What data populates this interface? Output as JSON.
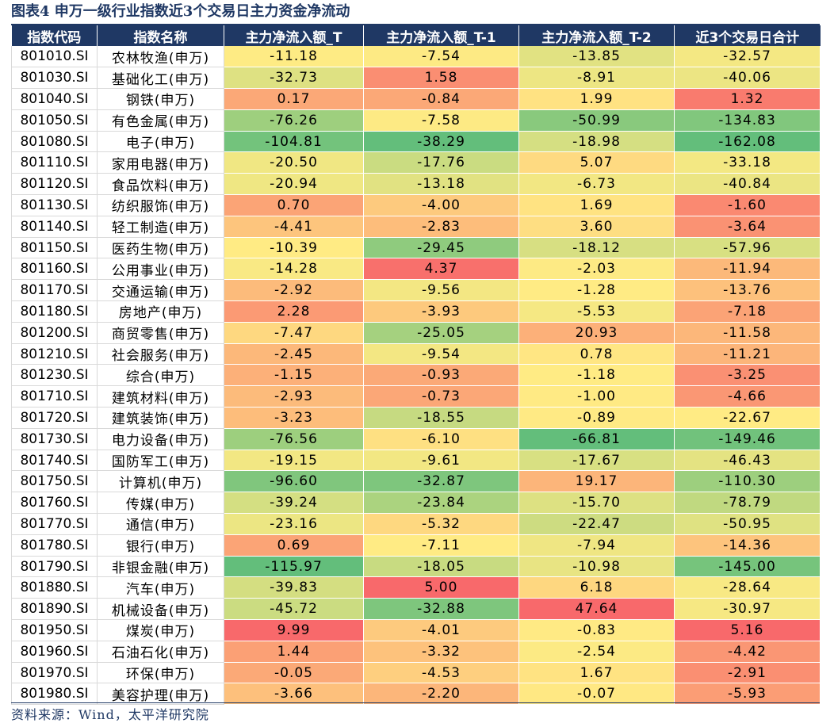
{
  "title": "图表4 申万一级行业指数近3个交易日主力资金净流动",
  "source": "资料来源：Wind，太平洋研究院",
  "colors": {
    "header_bg": "#1f3864",
    "scale_min": "#63be7b",
    "scale_mid": "#ffeb84",
    "scale_max": "#f8696b"
  },
  "columns": [
    "指数代码",
    "指数名称",
    "主力净流入额_T",
    "主力净流入额_T-1",
    "主力净流入额_T-2",
    "近3个交易日合计"
  ],
  "rows": [
    {
      "code": "801010.SI",
      "name": "农林牧渔(申万)",
      "t": "-11.18",
      "t1": "-7.54",
      "t2": "-13.85",
      "sum": "-32.57"
    },
    {
      "code": "801030.SI",
      "name": "基础化工(申万)",
      "t": "-32.73",
      "t1": "1.58",
      "t2": "-8.91",
      "sum": "-40.06"
    },
    {
      "code": "801040.SI",
      "name": "钢铁(申万)",
      "t": "0.17",
      "t1": "-0.84",
      "t2": "1.99",
      "sum": "1.32"
    },
    {
      "code": "801050.SI",
      "name": "有色金属(申万)",
      "t": "-76.26",
      "t1": "-7.58",
      "t2": "-50.99",
      "sum": "-134.83"
    },
    {
      "code": "801080.SI",
      "name": "电子(申万)",
      "t": "-104.81",
      "t1": "-38.29",
      "t2": "-18.98",
      "sum": "-162.08"
    },
    {
      "code": "801110.SI",
      "name": "家用电器(申万)",
      "t": "-20.50",
      "t1": "-17.76",
      "t2": "5.07",
      "sum": "-33.18"
    },
    {
      "code": "801120.SI",
      "name": "食品饮料(申万)",
      "t": "-20.94",
      "t1": "-13.18",
      "t2": "-6.73",
      "sum": "-40.84"
    },
    {
      "code": "801130.SI",
      "name": "纺织服饰(申万)",
      "t": "0.70",
      "t1": "-4.00",
      "t2": "1.69",
      "sum": "-1.60"
    },
    {
      "code": "801140.SI",
      "name": "轻工制造(申万)",
      "t": "-4.41",
      "t1": "-2.83",
      "t2": "3.60",
      "sum": "-3.64"
    },
    {
      "code": "801150.SI",
      "name": "医药生物(申万)",
      "t": "-10.39",
      "t1": "-29.45",
      "t2": "-18.12",
      "sum": "-57.96"
    },
    {
      "code": "801160.SI",
      "name": "公用事业(申万)",
      "t": "-14.28",
      "t1": "4.37",
      "t2": "-2.03",
      "sum": "-11.94"
    },
    {
      "code": "801170.SI",
      "name": "交通运输(申万)",
      "t": "-2.92",
      "t1": "-9.56",
      "t2": "-1.28",
      "sum": "-13.76"
    },
    {
      "code": "801180.SI",
      "name": "房地产(申万)",
      "t": "2.28",
      "t1": "-3.93",
      "t2": "-5.53",
      "sum": "-7.18"
    },
    {
      "code": "801200.SI",
      "name": "商贸零售(申万)",
      "t": "-7.47",
      "t1": "-25.05",
      "t2": "20.93",
      "sum": "-11.58"
    },
    {
      "code": "801210.SI",
      "name": "社会服务(申万)",
      "t": "-2.45",
      "t1": "-9.54",
      "t2": "0.78",
      "sum": "-11.21"
    },
    {
      "code": "801230.SI",
      "name": "综合(申万)",
      "t": "-1.15",
      "t1": "-0.93",
      "t2": "-1.18",
      "sum": "-3.25"
    },
    {
      "code": "801710.SI",
      "name": "建筑材料(申万)",
      "t": "-2.93",
      "t1": "-0.73",
      "t2": "-1.00",
      "sum": "-4.66"
    },
    {
      "code": "801720.SI",
      "name": "建筑装饰(申万)",
      "t": "-3.23",
      "t1": "-18.55",
      "t2": "-0.89",
      "sum": "-22.67"
    },
    {
      "code": "801730.SI",
      "name": "电力设备(申万)",
      "t": "-76.56",
      "t1": "-6.10",
      "t2": "-66.81",
      "sum": "-149.46"
    },
    {
      "code": "801740.SI",
      "name": "国防军工(申万)",
      "t": "-19.15",
      "t1": "-9.61",
      "t2": "-17.67",
      "sum": "-46.43"
    },
    {
      "code": "801750.SI",
      "name": "计算机(申万)",
      "t": "-96.60",
      "t1": "-32.87",
      "t2": "19.17",
      "sum": "-110.30"
    },
    {
      "code": "801760.SI",
      "name": "传媒(申万)",
      "t": "-39.24",
      "t1": "-23.84",
      "t2": "-15.70",
      "sum": "-78.79"
    },
    {
      "code": "801770.SI",
      "name": "通信(申万)",
      "t": "-23.16",
      "t1": "-5.32",
      "t2": "-22.47",
      "sum": "-50.95"
    },
    {
      "code": "801780.SI",
      "name": "银行(申万)",
      "t": "0.69",
      "t1": "-7.11",
      "t2": "-7.94",
      "sum": "-14.36"
    },
    {
      "code": "801790.SI",
      "name": "非银金融(申万)",
      "t": "-115.97",
      "t1": "-18.05",
      "t2": "-10.98",
      "sum": "-145.00"
    },
    {
      "code": "801880.SI",
      "name": "汽车(申万)",
      "t": "-39.83",
      "t1": "5.00",
      "t2": "6.18",
      "sum": "-28.64"
    },
    {
      "code": "801890.SI",
      "name": "机械设备(申万)",
      "t": "-45.72",
      "t1": "-32.88",
      "t2": "47.64",
      "sum": "-30.97"
    },
    {
      "code": "801950.SI",
      "name": "煤炭(申万)",
      "t": "9.99",
      "t1": "-4.01",
      "t2": "-0.83",
      "sum": "5.16"
    },
    {
      "code": "801960.SI",
      "name": "石油石化(申万)",
      "t": "1.44",
      "t1": "-3.32",
      "t2": "-2.54",
      "sum": "-4.42"
    },
    {
      "code": "801970.SI",
      "name": "环保(申万)",
      "t": "-0.05",
      "t1": "-4.53",
      "t2": "1.67",
      "sum": "-2.91"
    },
    {
      "code": "801980.SI",
      "name": "美容护理(申万)",
      "t": "-3.66",
      "t1": "-2.20",
      "t2": "-0.07",
      "sum": "-5.93"
    }
  ]
}
